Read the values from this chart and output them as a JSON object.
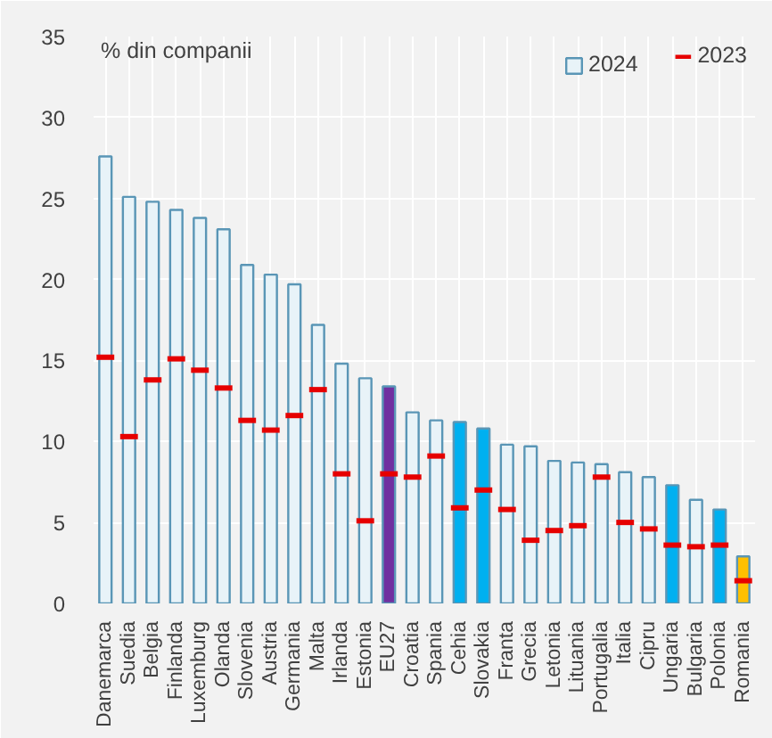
{
  "chart_data": {
    "type": "bar",
    "ylabel": "% din companii",
    "categories": [
      "Danemarca",
      "Suedia",
      "Belgia",
      "Finlanda",
      "Luxemburg",
      "Olanda",
      "Slovenia",
      "Austria",
      "Germania",
      "Malta",
      "Irlanda",
      "Estonia",
      "EU27",
      "Croatia",
      "Spania",
      "Cehia",
      "Slovakia",
      "Franta",
      "Grecia",
      "Letonia",
      "Lituania",
      "Portugalia",
      "Italia",
      "Cipru",
      "Ungaria",
      "Bulgaria",
      "Polonia",
      "Romania"
    ],
    "series": [
      {
        "name": "2024",
        "color": "#5a96b6",
        "colors": [
          "#e8f3f8",
          "#e8f3f8",
          "#e8f3f8",
          "#e8f3f8",
          "#e8f3f8",
          "#e8f3f8",
          "#e8f3f8",
          "#e8f3f8",
          "#e8f3f8",
          "#e8f3f8",
          "#e8f3f8",
          "#e8f3f8",
          "#7030a0",
          "#e8f3f8",
          "#e8f3f8",
          "#00b0f0",
          "#00b0f0",
          "#e8f3f8",
          "#e8f3f8",
          "#e8f3f8",
          "#e8f3f8",
          "#e8f3f8",
          "#e8f3f8",
          "#e8f3f8",
          "#00b0f0",
          "#e8f3f8",
          "#00b0f0",
          "#ffc000"
        ],
        "values": [
          27.6,
          25.1,
          24.8,
          24.3,
          23.8,
          23.1,
          20.9,
          20.3,
          19.7,
          17.2,
          14.8,
          13.9,
          13.4,
          11.8,
          11.3,
          11.2,
          10.8,
          9.8,
          9.7,
          8.8,
          8.7,
          8.6,
          8.1,
          7.8,
          7.3,
          6.4,
          5.8,
          2.9
        ]
      },
      {
        "name": "2023",
        "type": "scatter",
        "color": "#e60000",
        "values": [
          15.2,
          10.3,
          13.8,
          15.1,
          14.4,
          13.3,
          11.3,
          10.7,
          11.6,
          13.2,
          8.0,
          5.1,
          8.0,
          7.8,
          9.1,
          5.9,
          7.0,
          5.8,
          3.9,
          4.5,
          4.8,
          7.8,
          5.0,
          4.6,
          3.6,
          3.5,
          3.6,
          1.4
        ]
      }
    ],
    "ylim": [
      0,
      35
    ],
    "yticks": [
      0,
      5,
      10,
      15,
      20,
      25,
      30,
      35
    ],
    "grid": true,
    "legend": "top right"
  }
}
